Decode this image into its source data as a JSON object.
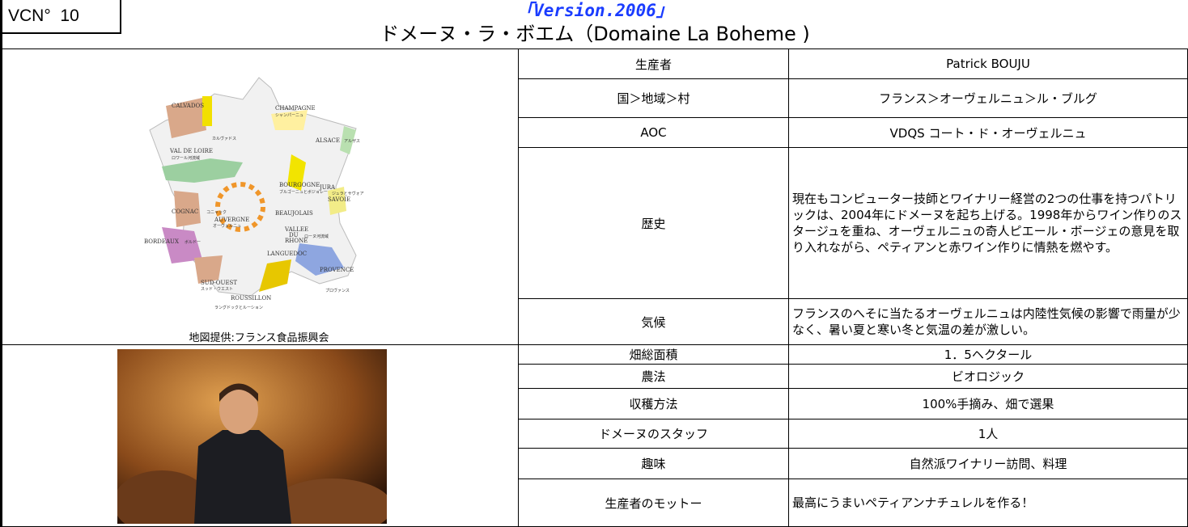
{
  "header": {
    "vcn_label": "VCN°",
    "vcn_number": "10",
    "version": "「Version.2006」",
    "title": "ドメーヌ・ラ・ボエム（Domaine La Boheme )"
  },
  "map": {
    "caption": "地図提供:フランス食品振興会",
    "labels": [
      "CHAMPAGNE",
      "シャンパーニュ",
      "CALVADOS",
      "カルヴァドス",
      "ALSACE",
      "アルザス",
      "VAL DE LOIRE",
      "ロワール河流域",
      "BOURGOGNE",
      "ブルゴーニュとボジョレー",
      "JURA",
      "ジュラとサヴォア",
      "SAVOIE",
      "COGNAC",
      "コニャック",
      "AUVERGNE",
      "オーヴェルニュ",
      "BEAUJOLAIS",
      "VALLEE",
      "DU",
      "RHONE",
      "ローヌ河流域",
      "BORDEAUX",
      "ボルドー",
      "PROVENCE",
      "プロヴァンス",
      "LANGUEDOC",
      "SUD-OUEST",
      "スッド・ウエスト",
      "ROUSSILLON",
      "ラングドックとルーション"
    ]
  },
  "table": {
    "rows": [
      [
        "生産者",
        "Patrick BOUJU"
      ],
      [
        "国＞地域＞村",
        "フランス＞オーヴェルニュ＞ル・ブルグ"
      ],
      [
        "AOC",
        "VDQS  コート・ド・オーヴェルニュ"
      ],
      [
        "歴史",
        "現在もコンピューター技師とワイナリー経営の2つの仕事を持つパトリックは、2004年にドメーヌを起ち上げる。1998年からワイン作りのスタージュを重ね、オーヴェルニュの奇人ピエール・ボージェの意見を取り入れながら、ペティアンと赤ワイン作りに情熱を燃やす。"
      ],
      [
        "気候",
        "フランスのへそに当たるオーヴェルニュは内陸性気候の影響で雨量が少なく、暑い夏と寒い冬と気温の差が激しい。"
      ],
      [
        "畑総面積",
        "1．5ヘクタール"
      ],
      [
        "農法",
        "ビオロジック"
      ],
      [
        "収穫方法",
        "100%手摘み、畑で選果"
      ],
      [
        "ドメーヌのスタッフ",
        "1人"
      ],
      [
        "趣味",
        "自然派ワイナリー訪問、料理"
      ],
      [
        "生産者のモットー",
        "最高にうまいペティアンナチュレルを作る！"
      ]
    ]
  }
}
